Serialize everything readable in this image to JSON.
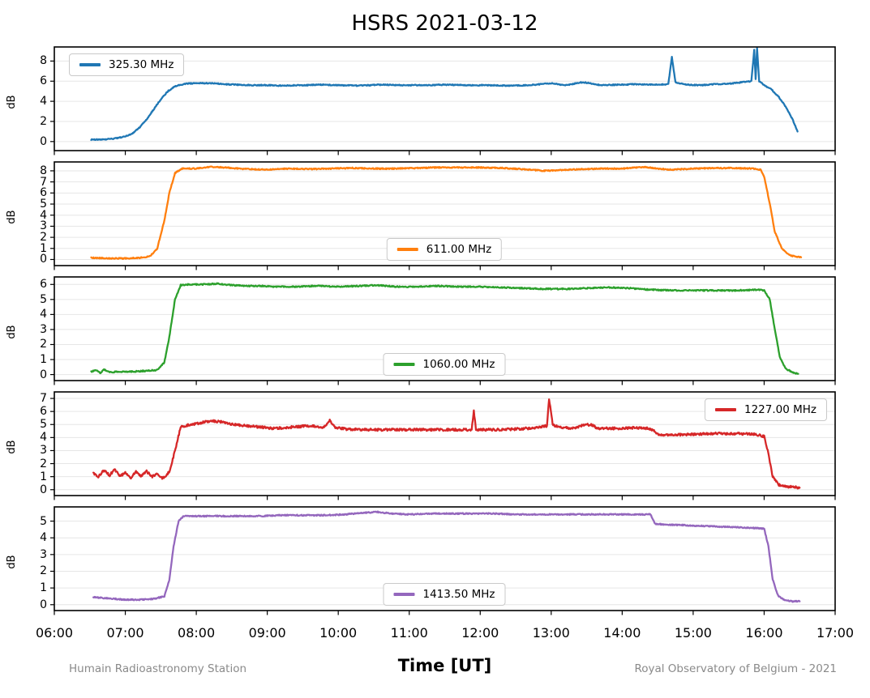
{
  "title": "HSRS 2021-03-12",
  "footer": {
    "left": "Humain Radioastronomy Station",
    "right": "Royal Observatory of Belgium - 2021"
  },
  "chart_data": {
    "type": "line",
    "title": "HSRS 2021-03-12",
    "xlabel": "Time [UT]",
    "xlim": [
      6,
      17
    ],
    "xticks": [
      6,
      7,
      8,
      9,
      10,
      11,
      12,
      13,
      14,
      15,
      16,
      17
    ],
    "xtick_labels": [
      "06:00",
      "07:00",
      "08:00",
      "09:00",
      "10:00",
      "11:00",
      "12:00",
      "13:00",
      "14:00",
      "15:00",
      "16:00",
      "17:00"
    ],
    "grid": "horizontal light gray gridlines per panel, black frame, ticks outside",
    "legend_style": "white box, gray border, line sample + label",
    "panels": [
      {
        "label": "325.30 MHz",
        "color": "#1f77b4",
        "ylabel": "dB",
        "yticks": [
          0,
          2,
          4,
          6,
          8
        ],
        "ylim": [
          -0.9,
          9.4
        ],
        "legend_pos": "upper left",
        "noise": 0.05,
        "points": [
          [
            6.52,
            0.2
          ],
          [
            6.7,
            0.2
          ],
          [
            6.85,
            0.3
          ],
          [
            7.0,
            0.5
          ],
          [
            7.1,
            0.8
          ],
          [
            7.2,
            1.4
          ],
          [
            7.3,
            2.2
          ],
          [
            7.4,
            3.2
          ],
          [
            7.5,
            4.2
          ],
          [
            7.6,
            5.0
          ],
          [
            7.7,
            5.5
          ],
          [
            7.85,
            5.75
          ],
          [
            8.0,
            5.8
          ],
          [
            8.2,
            5.8
          ],
          [
            8.4,
            5.7
          ],
          [
            8.6,
            5.65
          ],
          [
            8.8,
            5.6
          ],
          [
            9.0,
            5.6
          ],
          [
            9.2,
            5.55
          ],
          [
            9.5,
            5.6
          ],
          [
            9.8,
            5.65
          ],
          [
            10.0,
            5.6
          ],
          [
            10.3,
            5.55
          ],
          [
            10.6,
            5.65
          ],
          [
            10.9,
            5.6
          ],
          [
            11.2,
            5.6
          ],
          [
            11.5,
            5.65
          ],
          [
            11.8,
            5.6
          ],
          [
            12.1,
            5.6
          ],
          [
            12.4,
            5.55
          ],
          [
            12.7,
            5.6
          ],
          [
            13.0,
            5.8
          ],
          [
            13.2,
            5.6
          ],
          [
            13.45,
            5.9
          ],
          [
            13.7,
            5.6
          ],
          [
            13.95,
            5.65
          ],
          [
            14.2,
            5.7
          ],
          [
            14.45,
            5.65
          ],
          [
            14.65,
            5.7
          ],
          [
            14.7,
            8.4
          ],
          [
            14.75,
            5.9
          ],
          [
            14.9,
            5.65
          ],
          [
            15.1,
            5.6
          ],
          [
            15.3,
            5.7
          ],
          [
            15.5,
            5.75
          ],
          [
            15.7,
            5.9
          ],
          [
            15.82,
            6.0
          ],
          [
            15.86,
            9.1
          ],
          [
            15.88,
            6.2
          ],
          [
            15.9,
            9.3
          ],
          [
            15.93,
            6.0
          ],
          [
            16.0,
            5.6
          ],
          [
            16.1,
            5.2
          ],
          [
            16.2,
            4.5
          ],
          [
            16.3,
            3.5
          ],
          [
            16.4,
            2.2
          ],
          [
            16.47,
            1.0
          ]
        ]
      },
      {
        "label": "611.00 MHz",
        "color": "#ff7f0e",
        "ylabel": "dB",
        "yticks": [
          0,
          1,
          2,
          3,
          4,
          5,
          6,
          7,
          8
        ],
        "ylim": [
          -0.55,
          8.8
        ],
        "legend_pos": "lower center",
        "noise": 0.05,
        "points": [
          [
            6.52,
            0.15
          ],
          [
            6.8,
            0.1
          ],
          [
            7.0,
            0.1
          ],
          [
            7.2,
            0.15
          ],
          [
            7.35,
            0.3
          ],
          [
            7.45,
            1.0
          ],
          [
            7.55,
            3.5
          ],
          [
            7.62,
            6.0
          ],
          [
            7.7,
            7.8
          ],
          [
            7.8,
            8.2
          ],
          [
            8.0,
            8.2
          ],
          [
            8.2,
            8.35
          ],
          [
            8.4,
            8.3
          ],
          [
            8.6,
            8.2
          ],
          [
            8.8,
            8.15
          ],
          [
            9.0,
            8.1
          ],
          [
            9.3,
            8.2
          ],
          [
            9.6,
            8.15
          ],
          [
            9.9,
            8.2
          ],
          [
            10.2,
            8.25
          ],
          [
            10.5,
            8.2
          ],
          [
            10.8,
            8.2
          ],
          [
            11.1,
            8.25
          ],
          [
            11.4,
            8.3
          ],
          [
            11.7,
            8.3
          ],
          [
            12.0,
            8.3
          ],
          [
            12.3,
            8.25
          ],
          [
            12.6,
            8.15
          ],
          [
            12.9,
            8.0
          ],
          [
            13.1,
            8.05
          ],
          [
            13.4,
            8.15
          ],
          [
            13.7,
            8.2
          ],
          [
            14.0,
            8.2
          ],
          [
            14.3,
            8.35
          ],
          [
            14.5,
            8.2
          ],
          [
            14.7,
            8.1
          ],
          [
            15.0,
            8.2
          ],
          [
            15.3,
            8.25
          ],
          [
            15.6,
            8.25
          ],
          [
            15.85,
            8.2
          ],
          [
            15.95,
            8.1
          ],
          [
            16.0,
            7.5
          ],
          [
            16.08,
            5.0
          ],
          [
            16.15,
            2.5
          ],
          [
            16.25,
            1.0
          ],
          [
            16.35,
            0.4
          ],
          [
            16.45,
            0.25
          ],
          [
            16.52,
            0.2
          ]
        ]
      },
      {
        "label": "1060.00 MHz",
        "color": "#2ca02c",
        "ylabel": "dB",
        "yticks": [
          0,
          1,
          2,
          3,
          4,
          5,
          6
        ],
        "ylim": [
          -0.4,
          6.5
        ],
        "legend_pos": "lower center",
        "noise": 0.04,
        "points": [
          [
            6.52,
            0.2
          ],
          [
            6.6,
            0.3
          ],
          [
            6.65,
            0.1
          ],
          [
            6.7,
            0.35
          ],
          [
            6.78,
            0.15
          ],
          [
            6.9,
            0.2
          ],
          [
            7.1,
            0.2
          ],
          [
            7.3,
            0.25
          ],
          [
            7.45,
            0.3
          ],
          [
            7.55,
            0.8
          ],
          [
            7.62,
            2.5
          ],
          [
            7.7,
            5.0
          ],
          [
            7.78,
            5.95
          ],
          [
            7.9,
            6.0
          ],
          [
            8.1,
            6.0
          ],
          [
            8.3,
            6.05
          ],
          [
            8.5,
            5.95
          ],
          [
            8.7,
            5.9
          ],
          [
            8.9,
            5.9
          ],
          [
            9.1,
            5.85
          ],
          [
            9.4,
            5.85
          ],
          [
            9.7,
            5.9
          ],
          [
            10.0,
            5.85
          ],
          [
            10.3,
            5.9
          ],
          [
            10.55,
            5.95
          ],
          [
            10.8,
            5.85
          ],
          [
            11.1,
            5.85
          ],
          [
            11.4,
            5.9
          ],
          [
            11.7,
            5.85
          ],
          [
            12.0,
            5.85
          ],
          [
            12.3,
            5.8
          ],
          [
            12.6,
            5.75
          ],
          [
            12.9,
            5.7
          ],
          [
            13.2,
            5.7
          ],
          [
            13.5,
            5.75
          ],
          [
            13.8,
            5.8
          ],
          [
            14.1,
            5.75
          ],
          [
            14.4,
            5.65
          ],
          [
            14.7,
            5.6
          ],
          [
            15.0,
            5.6
          ],
          [
            15.3,
            5.6
          ],
          [
            15.6,
            5.6
          ],
          [
            15.9,
            5.65
          ],
          [
            16.0,
            5.6
          ],
          [
            16.08,
            5.0
          ],
          [
            16.15,
            3.0
          ],
          [
            16.22,
            1.2
          ],
          [
            16.3,
            0.4
          ],
          [
            16.4,
            0.15
          ],
          [
            16.48,
            0.05
          ]
        ]
      },
      {
        "label": "1227.00 MHz",
        "color": "#d62728",
        "ylabel": "dB",
        "yticks": [
          0,
          1,
          2,
          3,
          4,
          5,
          6,
          7
        ],
        "ylim": [
          -0.45,
          7.5
        ],
        "legend_pos": "upper right",
        "noise": 0.09,
        "points": [
          [
            6.55,
            1.3
          ],
          [
            6.62,
            1.0
          ],
          [
            6.7,
            1.5
          ],
          [
            6.78,
            1.1
          ],
          [
            6.85,
            1.6
          ],
          [
            6.92,
            1.0
          ],
          [
            7.0,
            1.3
          ],
          [
            7.08,
            0.9
          ],
          [
            7.15,
            1.4
          ],
          [
            7.22,
            1.0
          ],
          [
            7.3,
            1.4
          ],
          [
            7.38,
            1.0
          ],
          [
            7.45,
            1.2
          ],
          [
            7.52,
            0.9
          ],
          [
            7.58,
            1.1
          ],
          [
            7.63,
            1.5
          ],
          [
            7.7,
            3.0
          ],
          [
            7.78,
            4.8
          ],
          [
            7.9,
            5.0
          ],
          [
            8.05,
            5.1
          ],
          [
            8.2,
            5.3
          ],
          [
            8.35,
            5.2
          ],
          [
            8.5,
            5.0
          ],
          [
            8.7,
            4.9
          ],
          [
            8.9,
            4.8
          ],
          [
            9.1,
            4.7
          ],
          [
            9.35,
            4.8
          ],
          [
            9.6,
            4.9
          ],
          [
            9.8,
            4.8
          ],
          [
            9.88,
            5.3
          ],
          [
            9.95,
            4.8
          ],
          [
            10.1,
            4.65
          ],
          [
            10.4,
            4.6
          ],
          [
            10.7,
            4.6
          ],
          [
            11.0,
            4.6
          ],
          [
            11.3,
            4.6
          ],
          [
            11.6,
            4.6
          ],
          [
            11.88,
            4.6
          ],
          [
            11.91,
            6.0
          ],
          [
            11.94,
            4.6
          ],
          [
            12.2,
            4.6
          ],
          [
            12.5,
            4.65
          ],
          [
            12.8,
            4.75
          ],
          [
            12.94,
            4.9
          ],
          [
            12.97,
            7.0
          ],
          [
            13.02,
            5.0
          ],
          [
            13.1,
            4.8
          ],
          [
            13.3,
            4.7
          ],
          [
            13.48,
            5.0
          ],
          [
            13.58,
            4.95
          ],
          [
            13.65,
            4.7
          ],
          [
            13.9,
            4.7
          ],
          [
            14.15,
            4.75
          ],
          [
            14.35,
            4.7
          ],
          [
            14.44,
            4.6
          ],
          [
            14.48,
            4.25
          ],
          [
            14.7,
            4.2
          ],
          [
            15.0,
            4.25
          ],
          [
            15.3,
            4.3
          ],
          [
            15.6,
            4.3
          ],
          [
            15.85,
            4.25
          ],
          [
            16.0,
            4.1
          ],
          [
            16.05,
            3.0
          ],
          [
            16.12,
            1.0
          ],
          [
            16.2,
            0.4
          ],
          [
            16.3,
            0.25
          ],
          [
            16.4,
            0.2
          ],
          [
            16.5,
            0.15
          ]
        ]
      },
      {
        "label": "1413.50 MHz",
        "color": "#9467bd",
        "ylabel": "dB",
        "yticks": [
          0,
          1,
          2,
          3,
          4,
          5
        ],
        "ylim": [
          -0.35,
          5.85
        ],
        "legend_pos": "lower center",
        "noise": 0.035,
        "points": [
          [
            6.55,
            0.45
          ],
          [
            6.7,
            0.4
          ],
          [
            6.85,
            0.35
          ],
          [
            7.0,
            0.3
          ],
          [
            7.2,
            0.3
          ],
          [
            7.4,
            0.35
          ],
          [
            7.55,
            0.5
          ],
          [
            7.62,
            1.5
          ],
          [
            7.68,
            3.5
          ],
          [
            7.75,
            5.0
          ],
          [
            7.82,
            5.3
          ],
          [
            8.0,
            5.3
          ],
          [
            8.3,
            5.3
          ],
          [
            8.6,
            5.3
          ],
          [
            8.9,
            5.3
          ],
          [
            9.2,
            5.35
          ],
          [
            9.5,
            5.35
          ],
          [
            9.8,
            5.35
          ],
          [
            10.1,
            5.4
          ],
          [
            10.35,
            5.5
          ],
          [
            10.55,
            5.55
          ],
          [
            10.75,
            5.45
          ],
          [
            11.0,
            5.4
          ],
          [
            11.3,
            5.45
          ],
          [
            11.6,
            5.45
          ],
          [
            11.9,
            5.45
          ],
          [
            12.2,
            5.45
          ],
          [
            12.5,
            5.4
          ],
          [
            12.8,
            5.4
          ],
          [
            13.1,
            5.4
          ],
          [
            13.4,
            5.4
          ],
          [
            13.7,
            5.4
          ],
          [
            14.0,
            5.4
          ],
          [
            14.2,
            5.4
          ],
          [
            14.4,
            5.4
          ],
          [
            14.46,
            4.85
          ],
          [
            14.6,
            4.8
          ],
          [
            14.9,
            4.75
          ],
          [
            15.2,
            4.7
          ],
          [
            15.5,
            4.65
          ],
          [
            15.8,
            4.6
          ],
          [
            16.0,
            4.55
          ],
          [
            16.06,
            3.5
          ],
          [
            16.12,
            1.5
          ],
          [
            16.2,
            0.5
          ],
          [
            16.3,
            0.25
          ],
          [
            16.4,
            0.2
          ],
          [
            16.5,
            0.2
          ]
        ]
      }
    ]
  }
}
